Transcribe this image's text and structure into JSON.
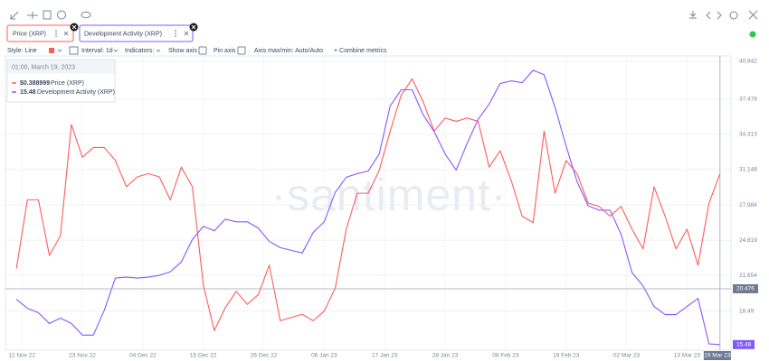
{
  "toolbar": {
    "tabs": [
      "Price (XRP)",
      "Development Activity (XRP)"
    ],
    "style": "Style: Line",
    "interval": "Interval: 1d",
    "indicators": "Indicators:",
    "show_axis": "Show axis",
    "pin_axis": "Pin axis",
    "axis_minmax": "Axis max/min: Auto/Auto",
    "combine": "+ Combine metrics"
  },
  "watermark": "·santiment·",
  "chart_data": {
    "type": "line",
    "x": [
      "2022-11-11",
      "2022-11-13",
      "2022-11-15",
      "2022-11-17",
      "2022-11-19",
      "2022-11-21",
      "2022-11-23",
      "2022-11-25",
      "2022-11-27",
      "2022-11-29",
      "2022-12-01",
      "2022-12-03",
      "2022-12-05",
      "2022-12-07",
      "2022-12-09",
      "2022-12-11",
      "2022-12-13",
      "2022-12-15",
      "2022-12-17",
      "2022-12-19",
      "2022-12-21",
      "2022-12-23",
      "2022-12-25",
      "2022-12-27",
      "2022-12-29",
      "2022-12-31",
      "2023-01-02",
      "2023-01-04",
      "2023-01-06",
      "2023-01-08",
      "2023-01-10",
      "2023-01-12",
      "2023-01-14",
      "2023-01-16",
      "2023-01-18",
      "2023-01-20",
      "2023-01-22",
      "2023-01-24",
      "2023-01-26",
      "2023-01-28",
      "2023-01-30",
      "2023-02-01",
      "2023-02-03",
      "2023-02-05",
      "2023-02-07",
      "2023-02-09",
      "2023-02-11",
      "2023-02-13",
      "2023-02-15",
      "2023-02-17",
      "2023-02-19",
      "2023-02-21",
      "2023-02-23",
      "2023-02-25",
      "2023-02-27",
      "2023-03-01",
      "2023-03-03",
      "2023-03-05",
      "2023-03-07",
      "2023-03-09",
      "2023-03-11",
      "2023-03-13",
      "2023-03-15",
      "2023-03-17",
      "2023-03-19"
    ],
    "series": [
      {
        "name": "Price (XRP)",
        "color": "#ff5b5b",
        "axis": "y2",
        "values": [
          0.36,
          0.381,
          0.381,
          0.364,
          0.37,
          0.404,
          0.394,
          0.397,
          0.397,
          0.393,
          0.385,
          0.388,
          0.389,
          0.388,
          0.381,
          0.391,
          0.385,
          0.355,
          0.341,
          0.348,
          0.353,
          0.349,
          0.352,
          0.361,
          0.344,
          0.345,
          0.346,
          0.344,
          0.347,
          0.354,
          0.372,
          0.383,
          0.383,
          0.39,
          0.402,
          0.413,
          0.418,
          0.411,
          0.402,
          0.406,
          0.405,
          0.406,
          0.405,
          0.391,
          0.396,
          0.387,
          0.376,
          0.374,
          0.402,
          0.383,
          0.393,
          0.389,
          0.38,
          0.379,
          0.376,
          0.379,
          0.372,
          0.366,
          0.385,
          0.376,
          0.366,
          0.372,
          0.361,
          0.38,
          0.388999
        ]
      },
      {
        "name": "Development Activity (XRP)",
        "color": "#8358ff",
        "values": [
          19.53,
          18.73,
          18.33,
          17.37,
          17.85,
          17.37,
          16.33,
          16.33,
          18.57,
          21.44,
          21.52,
          21.44,
          21.52,
          21.68,
          22.0,
          22.88,
          24.88,
          26.07,
          25.67,
          26.71,
          26.47,
          26.47,
          25.91,
          24.72,
          24.16,
          23.92,
          23.68,
          25.52,
          26.47,
          29.11,
          30.46,
          30.78,
          31.02,
          32.54,
          36.85,
          38.29,
          38.29,
          36.05,
          34.54,
          32.54,
          31.1,
          33.5,
          35.65,
          37.01,
          38.85,
          39.09,
          38.93,
          40.04,
          39.64,
          36.69,
          33.26,
          30.07,
          27.91,
          27.51,
          27.51,
          25.36,
          21.92,
          20.73,
          18.89,
          18.17,
          18.17,
          18.89,
          19.61,
          15.54,
          15.48
        ]
      }
    ],
    "xlim": [
      "2022-11-09",
      "2023-03-21"
    ],
    "xticks": [
      {
        "value": "2022-11-12",
        "label": "12 Nov 22"
      },
      {
        "value": "2022-11-23",
        "label": "23 Nov 22"
      },
      {
        "value": "2022-12-04",
        "label": "04 Dec 22"
      },
      {
        "value": "2022-12-15",
        "label": "15 Dec 22"
      },
      {
        "value": "2022-12-26",
        "label": "26 Dec 22"
      },
      {
        "value": "2023-01-06",
        "label": "06 Jan 23"
      },
      {
        "value": "2023-01-17",
        "label": "17 Jan 23"
      },
      {
        "value": "2023-01-28",
        "label": "28 Jan 23"
      },
      {
        "value": "2023-02-08",
        "label": "08 Feb 23"
      },
      {
        "value": "2023-02-19",
        "label": "19 Feb 23"
      },
      {
        "value": "2023-03-02",
        "label": "02 Mar 23"
      },
      {
        "value": "2023-03-13",
        "label": "13 Mar 23"
      }
    ],
    "ylim": [
      14.98,
      41.32
    ],
    "yticks": [
      40.842,
      37.478,
      34.313,
      31.148,
      27.984,
      24.819,
      21.654,
      18.49
    ],
    "y2lim": [
      0.335,
      0.425
    ],
    "grid": true,
    "cursor": {
      "time": "01:00, March 19, 2023",
      "date": "19 Mar 23",
      "x": "2023-03-19",
      "values": [
        {
          "value": 0.388999,
          "label": "$0.388999"
        },
        15.48
      ],
      "level": 20.476
    }
  }
}
